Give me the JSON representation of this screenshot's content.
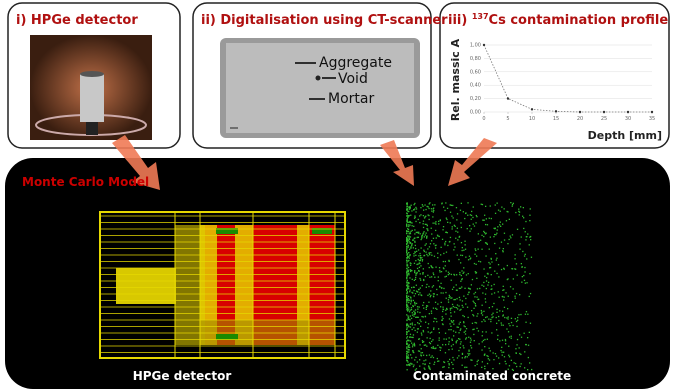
{
  "panels": [
    {
      "title": "i) HPGe detector"
    },
    {
      "title": "ii) Digitalisation using CT-scanner",
      "labels": [
        "Aggregate",
        "Void",
        "Mortar"
      ]
    },
    {
      "title_prefix": "iii) ",
      "title_sup": "137",
      "title_rest": "Cs contamination profile"
    }
  ],
  "profile": {
    "type": "line",
    "x_label": "Depth [mm]",
    "y_label": "Rel. massic A",
    "x": [
      0,
      5,
      10,
      15,
      20,
      25,
      30,
      35
    ],
    "values": [
      1,
      0.2,
      0.04,
      0.01,
      0,
      0,
      0,
      0
    ],
    "xlim": [
      0,
      35
    ],
    "ylim": [
      0,
      1
    ],
    "xticks": [
      0,
      5,
      10,
      15,
      20,
      25,
      30,
      35
    ],
    "yticks": [
      {
        "value": 0,
        "label": "0,00"
      },
      {
        "value": 0.2,
        "label": "0,20"
      },
      {
        "value": 0.4,
        "label": "0,40"
      },
      {
        "value": 0.6,
        "label": "0,60"
      },
      {
        "value": 0.8,
        "label": "0,80"
      },
      {
        "value": 1,
        "label": "1,00"
      }
    ]
  },
  "model": {
    "title": "Monte Carlo Model",
    "labels": [
      "HPGe detector",
      "Contaminated concrete"
    ]
  }
}
